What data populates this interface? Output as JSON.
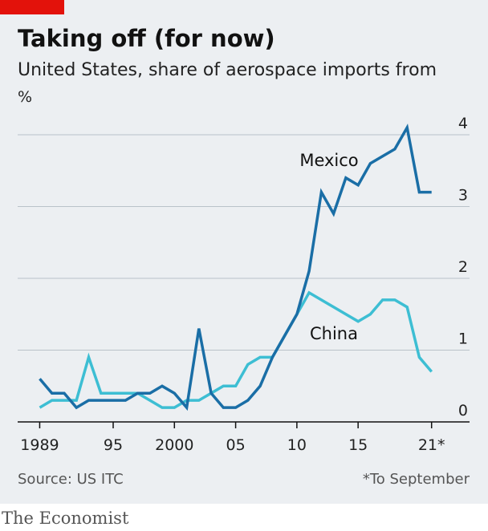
{
  "chart_data": {
    "type": "line",
    "title": "Taking off (for now)",
    "subtitle": "United States, share of aerospace imports from",
    "y_unit": "%",
    "x": [
      1989,
      1990,
      1991,
      1992,
      1993,
      1994,
      1995,
      1996,
      1997,
      1998,
      1999,
      2000,
      2001,
      2002,
      2003,
      2004,
      2005,
      2006,
      2007,
      2008,
      2009,
      2010,
      2011,
      2012,
      2013,
      2014,
      2015,
      2016,
      2017,
      2018,
      2019,
      2020,
      2021
    ],
    "series": [
      {
        "name": "Mexico",
        "color": "#1a6ea6",
        "values": [
          0.6,
          0.4,
          0.4,
          0.2,
          0.3,
          0.3,
          0.3,
          0.3,
          0.4,
          0.4,
          0.5,
          0.4,
          0.2,
          1.3,
          0.4,
          0.2,
          0.2,
          0.3,
          0.5,
          0.9,
          1.2,
          1.5,
          2.1,
          3.2,
          2.9,
          3.4,
          3.3,
          3.6,
          3.7,
          3.8,
          4.1,
          3.2,
          3.2
        ]
      },
      {
        "name": "China",
        "color": "#3dbed3",
        "values": [
          0.2,
          0.3,
          0.3,
          0.3,
          0.9,
          0.4,
          0.4,
          0.4,
          0.4,
          0.3,
          0.2,
          0.2,
          0.3,
          0.3,
          0.4,
          0.5,
          0.5,
          0.8,
          0.9,
          0.9,
          1.2,
          1.5,
          1.8,
          1.7,
          1.6,
          1.5,
          1.4,
          1.5,
          1.7,
          1.7,
          1.6,
          0.9,
          0.7
        ]
      }
    ],
    "xlim": [
      1987.2,
      2024.1
    ],
    "xticks": [
      {
        "value": 1989,
        "label": "1989"
      },
      {
        "value": 1995,
        "label": "95"
      },
      2000,
      {
        "value": 2005,
        "label": "05"
      },
      {
        "value": 2010,
        "label": "10"
      },
      {
        "value": 2015,
        "label": "15"
      },
      {
        "value": 2021,
        "label": "21*"
      }
    ],
    "ylim": [
      0,
      4
    ],
    "yticks": [
      0,
      1,
      2,
      3,
      4
    ],
    "grid": true,
    "source": "Source: US ITC",
    "note": "*To September",
    "brand": "The Economist"
  }
}
